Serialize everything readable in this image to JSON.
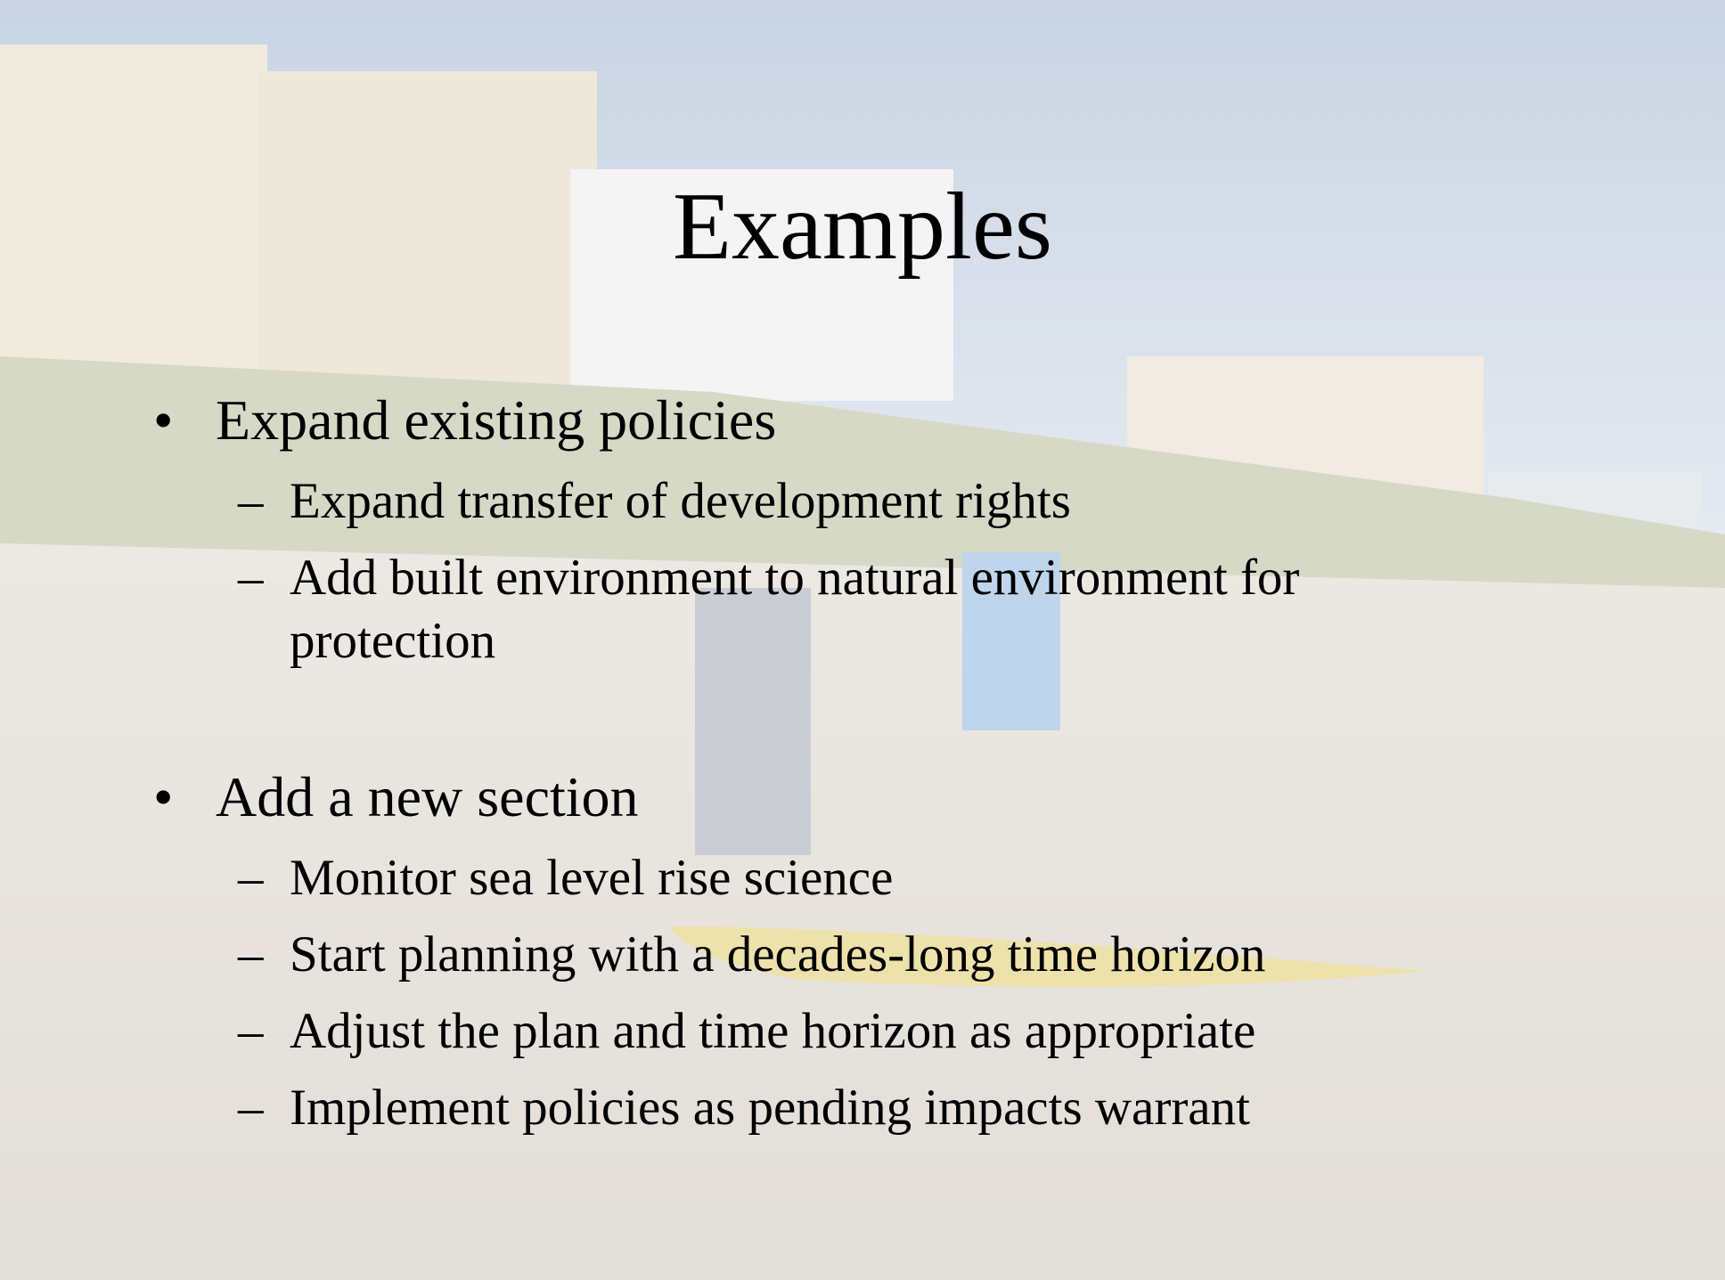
{
  "title": "Examples",
  "bullets": [
    {
      "text": "Expand existing policies",
      "sub": [
        "Expand transfer of development rights",
        "Add built environment to natural environment for protection"
      ]
    },
    {
      "text": "Add a new section",
      "sub": [
        "Monitor sea level rise science",
        "Start planning with a decades-long time horizon",
        "Adjust the plan and time horizon as appropriate",
        "Implement policies as pending impacts warrant"
      ]
    }
  ]
}
